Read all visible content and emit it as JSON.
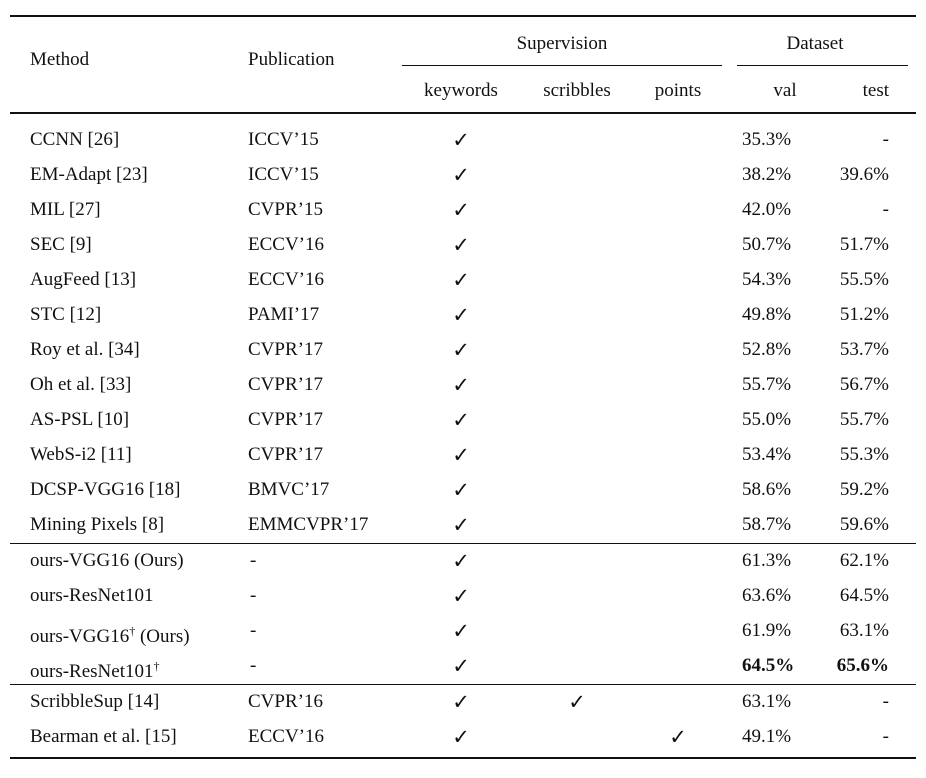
{
  "table": {
    "header": {
      "method": "Method",
      "publication": "Publication",
      "supervision": "Supervision",
      "dataset": "Dataset",
      "keywords": "keywords",
      "scribbles": "scribbles",
      "points": "points",
      "val": "val",
      "test": "test"
    },
    "groups": [
      {
        "rows": [
          {
            "method": "CCNN [26]",
            "publication": "ICCV’15",
            "keywords": "✓",
            "val": "35.3%",
            "test": "-"
          },
          {
            "method": "EM-Adapt [23]",
            "publication": "ICCV’15",
            "keywords": "✓",
            "val": "38.2%",
            "test": "39.6%"
          },
          {
            "method": "MIL [27]",
            "publication": "CVPR’15",
            "keywords": "✓",
            "val": "42.0%",
            "test": "-"
          },
          {
            "method": "SEC [9]",
            "publication": "ECCV’16",
            "keywords": "✓",
            "val": "50.7%",
            "test": "51.7%"
          },
          {
            "method": "AugFeed [13]",
            "publication": "ECCV’16",
            "keywords": "✓",
            "val": "54.3%",
            "test": "55.5%"
          },
          {
            "method": "STC [12]",
            "publication": "PAMI’17",
            "keywords": "✓",
            "val": "49.8%",
            "test": "51.2%"
          },
          {
            "method": "Roy et al. [34]",
            "publication": "CVPR’17",
            "keywords": "✓",
            "val": "52.8%",
            "test": "53.7%"
          },
          {
            "method": "Oh et al. [33]",
            "publication": "CVPR’17",
            "keywords": "✓",
            "val": "55.7%",
            "test": "56.7%"
          },
          {
            "method": "AS-PSL [10]",
            "publication": "CVPR’17",
            "keywords": "✓",
            "val": "55.0%",
            "test": "55.7%"
          },
          {
            "method": "WebS-i2 [11]",
            "publication": "CVPR’17",
            "keywords": "✓",
            "val": "53.4%",
            "test": "55.3%"
          },
          {
            "method": "DCSP-VGG16 [18]",
            "publication": "BMVC’17",
            "keywords": "✓",
            "val": "58.6%",
            "test": "59.2%"
          },
          {
            "method": "Mining Pixels [8]",
            "publication": "EMMCVPR’17",
            "keywords": "✓",
            "val": "58.7%",
            "test": "59.6%"
          }
        ]
      },
      {
        "rows": [
          {
            "method": "ours-VGG16 (Ours)",
            "publication": "-",
            "keywords": "✓",
            "val": "61.3%",
            "test": "62.1%"
          },
          {
            "method": "ours-ResNet101",
            "publication": "-",
            "keywords": "✓",
            "val": "63.6%",
            "test": "64.5%"
          },
          {
            "method": "ours-VGG16",
            "sup": "†",
            "method_suffix": "(Ours)",
            "publication": "-",
            "keywords": "✓",
            "val": "61.9%",
            "test": "63.1%"
          },
          {
            "method": "ours-ResNet101",
            "sup": "†",
            "publication": "-",
            "keywords": "✓",
            "val": "64.5%",
            "test": "65.6%",
            "bold": [
              "val",
              "test"
            ]
          }
        ]
      },
      {
        "rows": [
          {
            "method": "ScribbleSup [14]",
            "publication": "CVPR’16",
            "keywords": "✓",
            "scribbles": "✓",
            "val": "63.1%",
            "test": "-"
          },
          {
            "method": "Bearman et al. [15]",
            "publication": "ECCV’16",
            "keywords": "✓",
            "points": "✓",
            "val": "49.1%",
            "test": "-"
          }
        ]
      }
    ]
  }
}
